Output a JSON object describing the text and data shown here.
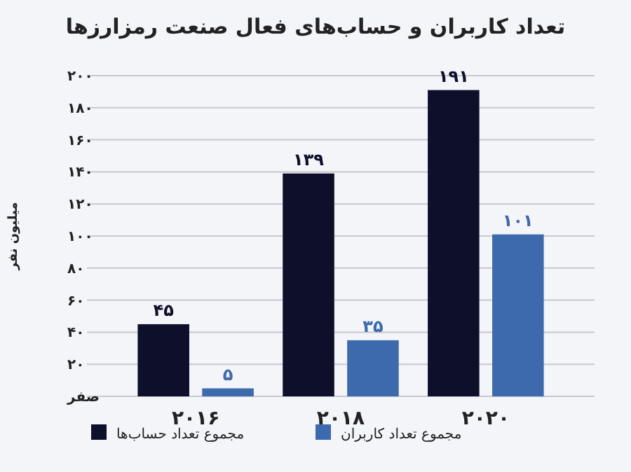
{
  "chart_data": {
    "type": "bar",
    "title": "تعداد کاربران و حساب‌های فعال صنعت رمزارزها",
    "ylabel": "میلیون نفر",
    "categories": [
      "۲۰۱۶",
      "۲۰۱۸",
      "۲۰۲۰"
    ],
    "series": [
      {
        "name": "مجموع تعداد حساب‌ها",
        "color": "#0e0f2b",
        "values": [
          45,
          139,
          191
        ],
        "value_labels": [
          "۴۵",
          "۱۳۹",
          "۱۹۱"
        ]
      },
      {
        "name": "مجموع تعداد کاربران",
        "color": "#3d69ad",
        "values": [
          5,
          35,
          101
        ],
        "value_labels": [
          "۵",
          "۳۵",
          "۱۰۱"
        ]
      }
    ],
    "ylim": [
      0,
      200
    ],
    "yticks": [
      {
        "value": 0,
        "label": "صفر"
      },
      {
        "value": 20,
        "label": "۲۰"
      },
      {
        "value": 40,
        "label": "۴۰"
      },
      {
        "value": 60,
        "label": "۶۰"
      },
      {
        "value": 80,
        "label": "۸۰"
      },
      {
        "value": 100,
        "label": "۱۰۰"
      },
      {
        "value": 120,
        "label": "۱۲۰"
      },
      {
        "value": 140,
        "label": "۱۴۰"
      },
      {
        "value": 160,
        "label": "۱۶۰"
      },
      {
        "value": 180,
        "label": "۱۸۰"
      },
      {
        "value": 200,
        "label": "۲۰۰"
      }
    ],
    "grid": "y",
    "legend": "bottom"
  }
}
